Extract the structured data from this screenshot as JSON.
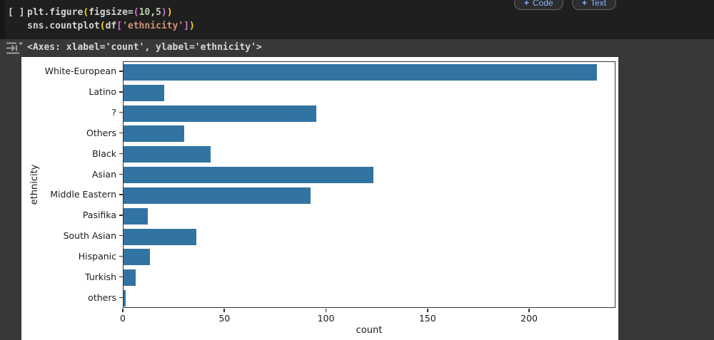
{
  "toolbar": {
    "plus_glyph": "+",
    "add_code_label": "Code",
    "add_text_label": "Text"
  },
  "code_cell": {
    "exec_indicator": "[ ]",
    "lines": [
      [
        {
          "t": "plt.figure",
          "c": "plain"
        },
        {
          "t": "(",
          "c": "b1"
        },
        {
          "t": "figsize=",
          "c": "plain"
        },
        {
          "t": "(",
          "c": "b2"
        },
        {
          "t": "10",
          "c": "num"
        },
        {
          "t": ",",
          "c": "plain"
        },
        {
          "t": "5",
          "c": "num"
        },
        {
          "t": ")",
          "c": "b2"
        },
        {
          "t": ")",
          "c": "b1"
        }
      ],
      [
        {
          "t": "sns.countplot",
          "c": "plain"
        },
        {
          "t": "(",
          "c": "b1"
        },
        {
          "t": "df",
          "c": "plain"
        },
        {
          "t": "[",
          "c": "b2"
        },
        {
          "t": "'ethnicity'",
          "c": "str"
        },
        {
          "t": "]",
          "c": "b2"
        },
        {
          "t": ")",
          "c": "b1"
        }
      ]
    ]
  },
  "output": {
    "text": "<Axes: xlabel='count', ylabel='ethnicity'>"
  },
  "chart_data": {
    "type": "bar",
    "orientation": "horizontal",
    "title": "",
    "xlabel": "count",
    "ylabel": "ethnicity",
    "categories": [
      "White-European",
      "Latino",
      "?",
      "Others",
      "Black",
      "Asian",
      "Middle Eastern",
      "Pasifika",
      "South Asian",
      "Hispanic",
      "Turkish",
      "others"
    ],
    "values": [
      233,
      20,
      95,
      30,
      43,
      123,
      92,
      12,
      36,
      13,
      6,
      1
    ],
    "xlim": [
      0,
      242.5
    ],
    "xticks": [
      0,
      50,
      100,
      150,
      200
    ],
    "bar_color": "#3274a1",
    "grid": false,
    "legend": null
  },
  "colors": {
    "syntax": {
      "plain": "#d4d4d4",
      "b1": "#ffd700",
      "b2": "#da70d6",
      "num": "#b5cea8",
      "str": "#ce9178"
    },
    "figure_bg": "#ffffff",
    "page_bg": "#383838",
    "cell_bg": "#1f1f1f",
    "button_accent": "#8ab4f8"
  }
}
